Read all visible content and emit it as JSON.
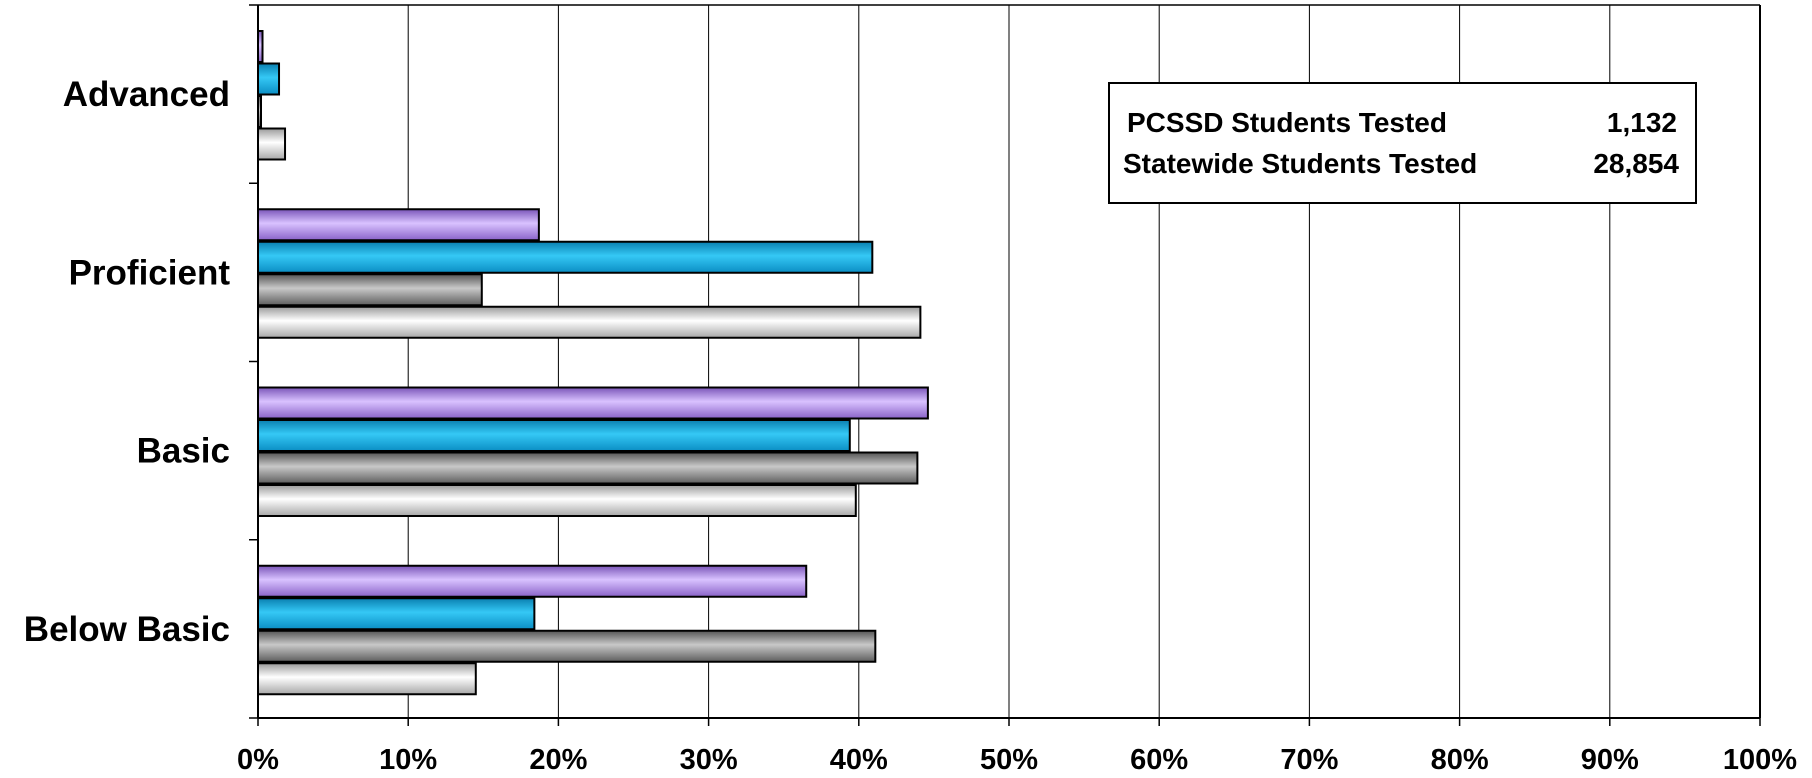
{
  "chart_data": {
    "type": "bar",
    "orientation": "horizontal",
    "categories": [
      "Advanced",
      "Proficient",
      "Basic",
      "Below Basic"
    ],
    "series": [
      {
        "color": "#b388ee",
        "values": [
          0.3,
          18.7,
          44.6,
          36.5
        ]
      },
      {
        "color": "#15b3e8",
        "values": [
          1.4,
          40.9,
          39.4,
          18.4
        ]
      },
      {
        "color": "#8c8c8c",
        "values": [
          0.2,
          14.9,
          43.9,
          41.1
        ]
      },
      {
        "color": "#d9d9d9",
        "values": [
          1.8,
          44.1,
          39.8,
          14.5
        ]
      }
    ],
    "xlim": [
      0,
      100
    ],
    "xticks": [
      "0%",
      "10%",
      "20%",
      "30%",
      "40%",
      "50%",
      "60%",
      "70%",
      "80%",
      "90%",
      "100%"
    ],
    "grid": "vertical",
    "legend": "none",
    "info_box": {
      "rows": [
        {
          "label": "PCSSD Students Tested",
          "value": "1,132"
        },
        {
          "label": "Statewide Students Tested",
          "value": "28,854"
        }
      ]
    }
  }
}
